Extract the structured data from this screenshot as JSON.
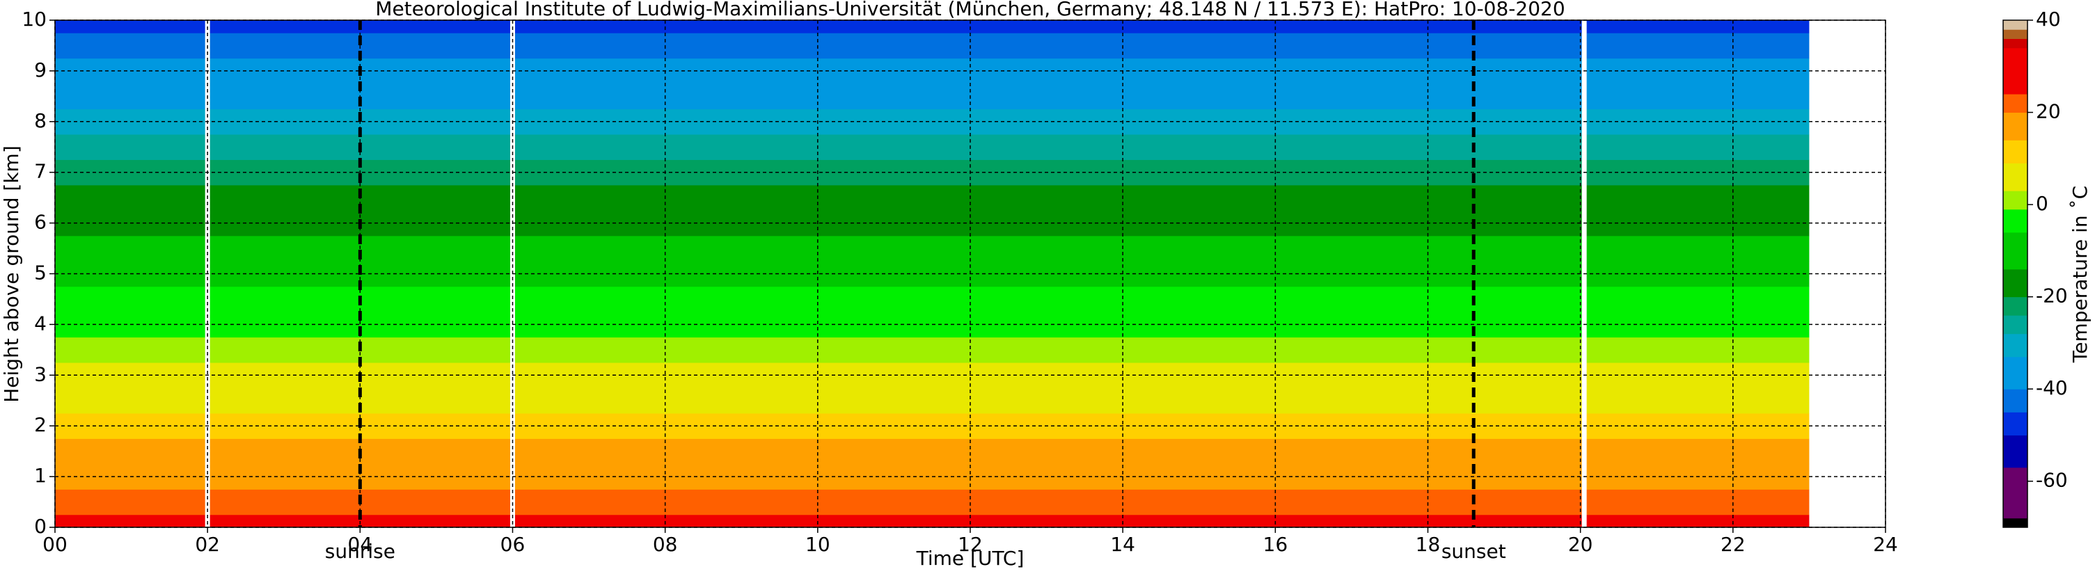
{
  "chart_data": {
    "type": "heatmap",
    "title": "Meteorological Institute of Ludwig-Maximilians-Universität (München, Germany; 48.148 N / 11.573 E):    HatPro: 10-08-2020",
    "x_label": "Time [UTC]",
    "y_label": "Height above ground [km]",
    "colorbar_label": "Temperature in ˚C",
    "xlim": [
      0,
      24
    ],
    "xticks": [
      {
        "value": 0,
        "label": "00"
      },
      {
        "value": 2,
        "label": "02"
      },
      {
        "value": 4,
        "label": "04"
      },
      {
        "value": 6,
        "label": "06"
      },
      {
        "value": 8,
        "label": "08"
      },
      10,
      12,
      14,
      16,
      18,
      20,
      22,
      24
    ],
    "ylim": [
      0,
      10
    ],
    "yticks": [
      0,
      1,
      2,
      3,
      4,
      5,
      6,
      7,
      8,
      9,
      10
    ],
    "grid": true,
    "data_time_range": [
      0,
      23
    ],
    "data_gaps": [
      2.0,
      6.0,
      20.05
    ],
    "annotations": [
      {
        "x": 4.0,
        "text": "sunrise"
      },
      {
        "x": 18.6,
        "text": "sunset"
      }
    ],
    "heights": [
      0,
      0.5,
      1,
      1.5,
      2,
      2.5,
      3,
      3.5,
      4,
      4.5,
      5,
      5.5,
      6,
      6.5,
      7,
      7.5,
      8,
      8.5,
      9,
      9.5,
      10
    ],
    "temperatures": [
      25,
      22,
      19,
      14,
      11,
      8,
      6,
      2,
      -2,
      -5,
      -8,
      -12,
      -16,
      -20,
      -24,
      -28,
      -31,
      -34,
      -38,
      -41,
      -47
    ],
    "clim": [
      -70,
      40
    ],
    "cticks": [
      -60,
      -40,
      -20,
      0,
      20,
      40
    ],
    "colormap": [
      {
        "value": -70,
        "color": "#000000"
      },
      {
        "value": -68,
        "color": "#6a006a"
      },
      {
        "value": -57,
        "color": "#0000b0"
      },
      {
        "value": -50,
        "color": "#0030e0"
      },
      {
        "value": -45,
        "color": "#0070e0"
      },
      {
        "value": -40,
        "color": "#0098e0"
      },
      {
        "value": -33,
        "color": "#00a8c8"
      },
      {
        "value": -28,
        "color": "#00a898"
      },
      {
        "value": -24,
        "color": "#00a060"
      },
      {
        "value": -20,
        "color": "#009000"
      },
      {
        "value": -14,
        "color": "#00c800"
      },
      {
        "value": -6,
        "color": "#00f000"
      },
      {
        "value": -1,
        "color": "#a0f000"
      },
      {
        "value": 3,
        "color": "#e8e800"
      },
      {
        "value": 9,
        "color": "#ffd000"
      },
      {
        "value": 14,
        "color": "#ffa000"
      },
      {
        "value": 20,
        "color": "#ff6000"
      },
      {
        "value": 24,
        "color": "#f00000"
      },
      {
        "value": 34,
        "color": "#d00000"
      },
      {
        "value": 36,
        "color": "#b06020"
      },
      {
        "value": 38,
        "color": "#d8c0a0"
      }
    ]
  }
}
